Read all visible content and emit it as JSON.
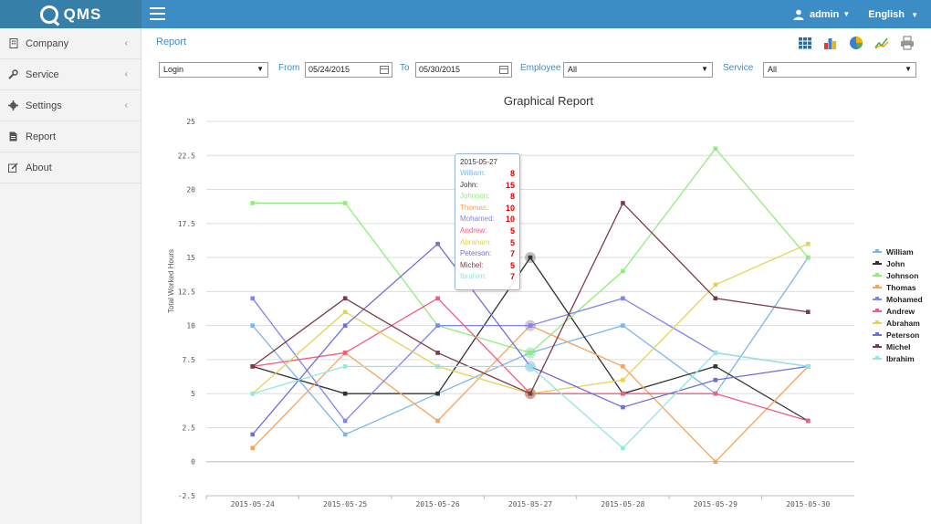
{
  "app": {
    "logo_text": "QMS"
  },
  "header": {
    "user_label": "admin",
    "lang_label": "English"
  },
  "sidebar": {
    "items": [
      {
        "label": "Company",
        "icon": "building-icon",
        "has_chevron": true
      },
      {
        "label": "Service",
        "icon": "wrench-icon",
        "has_chevron": true
      },
      {
        "label": "Settings",
        "icon": "gear-icon",
        "has_chevron": true
      },
      {
        "label": "Report",
        "icon": "document-icon",
        "has_chevron": false
      },
      {
        "label": "About",
        "icon": "edit-icon",
        "has_chevron": false
      }
    ]
  },
  "main": {
    "breadcrumb": "Report",
    "toolbar": [
      "table-view-icon",
      "bar-chart-icon",
      "pie-chart-icon",
      "line-chart-icon",
      "print-icon"
    ]
  },
  "filters": {
    "report_type": "Login",
    "from_label": "From",
    "from_value": "05/24/2015",
    "to_label": "To",
    "to_value": "05/30/2015",
    "employee_label": "Employee",
    "employee_value": "All",
    "service_label": "Service",
    "service_value": "All"
  },
  "chart_data": {
    "type": "line",
    "title": "Graphical Report",
    "ylabel": "Total Worked Hours",
    "xlabel": "",
    "ylim": [
      -2.5,
      25
    ],
    "yticks": [
      "-2.5",
      "0",
      "2.5",
      "5",
      "7.5",
      "10",
      "12.5",
      "15",
      "17.5",
      "20",
      "22.5",
      "25"
    ],
    "grid": true,
    "legend_position": "right",
    "categories": [
      "2015-05-24",
      "2015-05-25",
      "2015-05-26",
      "2015-05-27",
      "2015-05-28",
      "2015-05-29",
      "2015-05-30"
    ],
    "series": [
      {
        "name": "William",
        "color": "#7cb5ec",
        "values": [
          10,
          2,
          5,
          8,
          10,
          5,
          15
        ]
      },
      {
        "name": "John",
        "color": "#333333",
        "values": [
          7,
          5,
          5,
          15,
          5,
          7,
          3
        ]
      },
      {
        "name": "Johnson",
        "color": "#90ed7d",
        "values": [
          19,
          19,
          10,
          8,
          14,
          23,
          15
        ]
      },
      {
        "name": "Thomas",
        "color": "#f7a35c",
        "values": [
          1,
          8,
          3,
          10,
          7,
          0,
          7
        ]
      },
      {
        "name": "Mohamed",
        "color": "#8085e9",
        "values": [
          12,
          3,
          10,
          10,
          12,
          8,
          7
        ]
      },
      {
        "name": "Andrew",
        "color": "#f15c80",
        "values": [
          7,
          8,
          12,
          5,
          5,
          5,
          3
        ]
      },
      {
        "name": "Abraham",
        "color": "#e4d354",
        "values": [
          5,
          11,
          7,
          5,
          6,
          13,
          16
        ]
      },
      {
        "name": "Peterson",
        "color": "#6f6fd6",
        "values": [
          2,
          10,
          16,
          7,
          4,
          6,
          7
        ]
      },
      {
        "name": "Michel",
        "color": "#7a3a4a",
        "values": [
          7,
          12,
          8,
          5,
          19,
          12,
          11
        ]
      },
      {
        "name": "Ibrahim",
        "color": "#91e8e1",
        "values": [
          5,
          7,
          7,
          7,
          1,
          8,
          7
        ]
      }
    ],
    "tooltip": {
      "date": "2015-05-27",
      "rows": [
        {
          "name": "William:",
          "value": "8",
          "color": "#7cb5ec"
        },
        {
          "name": "John:",
          "value": "15",
          "color": "#333333"
        },
        {
          "name": "Johnson:",
          "value": "8",
          "color": "#90ed7d"
        },
        {
          "name": "Thomas:",
          "value": "10",
          "color": "#f7a35c"
        },
        {
          "name": "Mohamed:",
          "value": "10",
          "color": "#8085e9"
        },
        {
          "name": "Andrew:",
          "value": "5",
          "color": "#f15c80"
        },
        {
          "name": "Abraham:",
          "value": "5",
          "color": "#e4d354"
        },
        {
          "name": "Peterson:",
          "value": "7",
          "color": "#6f6fd6"
        },
        {
          "name": "Michel:",
          "value": "5",
          "color": "#7a3a4a"
        },
        {
          "name": "Ibrahim:",
          "value": "7",
          "color": "#91e8e1"
        }
      ]
    }
  }
}
